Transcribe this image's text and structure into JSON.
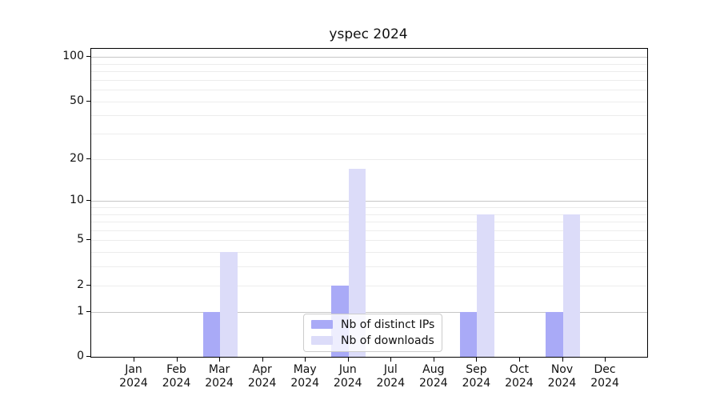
{
  "title": "yspec 2024",
  "chart_data": {
    "type": "bar",
    "title": "yspec 2024",
    "xlabel": "",
    "ylabel": "",
    "yscale": "log1p",
    "y_ticks": [
      0,
      1,
      2,
      5,
      10,
      20,
      50,
      100
    ],
    "y_minor_gridlines": [
      2,
      3,
      4,
      5,
      6,
      7,
      8,
      9,
      20,
      30,
      40,
      50,
      60,
      70,
      80,
      90
    ],
    "y_major_gridlines": [
      1,
      10,
      100
    ],
    "ylim": [
      0,
      113
    ],
    "grid": "horizontal",
    "legend_position": "lower center",
    "categories": [
      "Jan 2024",
      "Feb 2024",
      "Mar 2024",
      "Apr 2024",
      "May 2024",
      "Jun 2024",
      "Jul 2024",
      "Aug 2024",
      "Sep 2024",
      "Oct 2024",
      "Nov 2024",
      "Dec 2024"
    ],
    "series": [
      {
        "name": "Nb of distinct IPs",
        "color": "#a9aaf7",
        "values": [
          0,
          0,
          1,
          0,
          0,
          2,
          0,
          0,
          1,
          0,
          1,
          0
        ]
      },
      {
        "name": "Nb of downloads",
        "color": "#dcdcf9",
        "values": [
          0,
          0,
          4,
          0,
          0,
          17,
          0,
          0,
          8,
          0,
          8,
          0
        ]
      }
    ]
  },
  "colors": {
    "grid_major": "#c6c6c6",
    "grid_minor": "#ececec",
    "spine": "#000000",
    "text": "#111111",
    "legend_border": "#cccccc"
  }
}
